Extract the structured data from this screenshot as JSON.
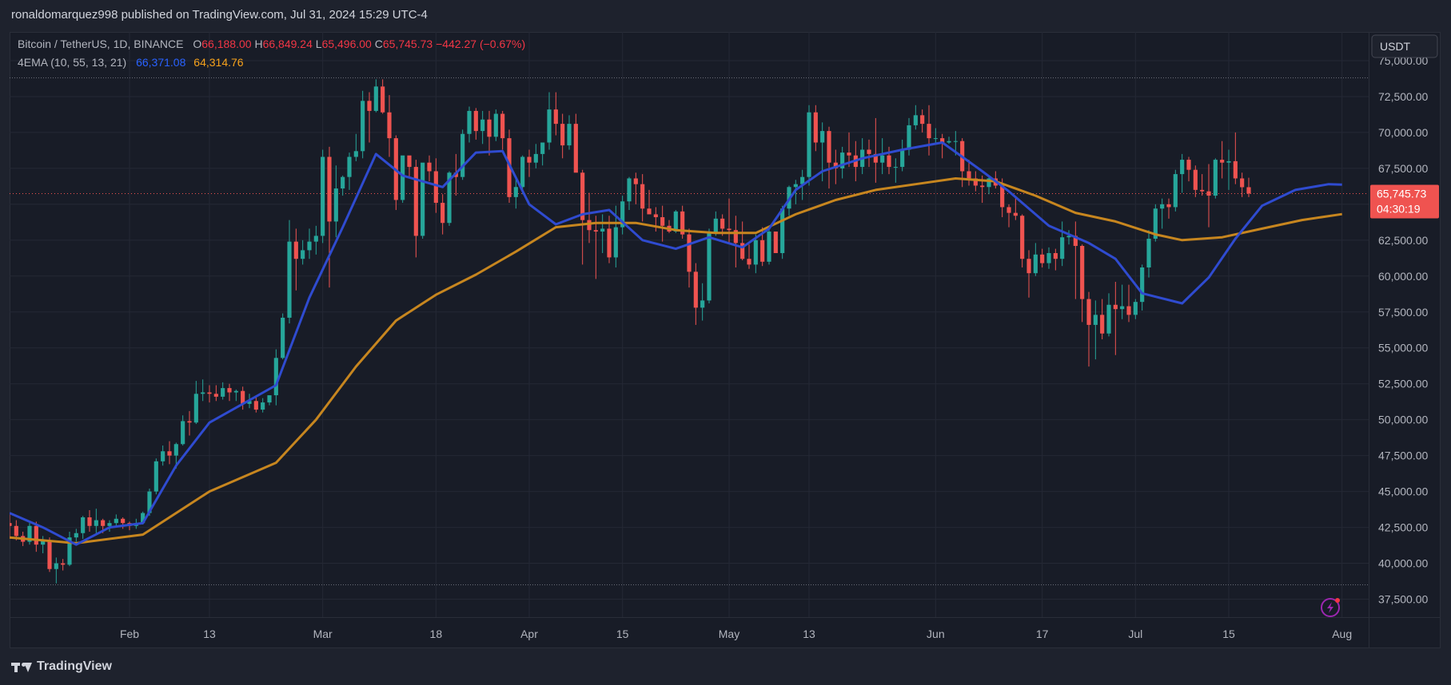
{
  "header": {
    "published": "ronaldomarquez998 published on TradingView.com, Jul 31, 2024 15:29 UTC-4"
  },
  "legend": {
    "symbol": "Bitcoin / TetherUS, 1D, BINANCE",
    "open_label": "O",
    "open": "66,188.00",
    "high_label": "H",
    "high": "66,849.24",
    "low_label": "L",
    "low": "65,496.00",
    "close_label": "C",
    "close": "65,745.73",
    "change": "−442.27 (−0.67%)",
    "indicator": "4EMA (10, 55, 13, 21)",
    "ema_fast": "66,371.08",
    "ema_slow": "64,314.76"
  },
  "price_axis": {
    "currency": "USDT",
    "last_price_label": "65,745.73",
    "countdown": "04:30:19"
  },
  "footer": {
    "brand": "TradingView"
  },
  "colors": {
    "up": "#26a69a",
    "down": "#ef5350",
    "ema_fast": "#2f4bd0",
    "ema_slow": "#c7861f",
    "background": "#181c27",
    "grid": "#242835"
  },
  "chart_data": {
    "type": "candlestick",
    "symbol": "BTCUSDT",
    "interval": "1D",
    "x_range": [
      "2024-01-14",
      "2024-08-05"
    ],
    "y_range": [
      36250,
      77000
    ],
    "y_ticks": [
      37500,
      40000,
      42500,
      45000,
      47500,
      50000,
      52500,
      55000,
      57500,
      60000,
      62500,
      65000,
      67500,
      70000,
      72500,
      75000
    ],
    "x_ticks": [
      {
        "label": "Feb",
        "date": "2024-02-01"
      },
      {
        "label": "13",
        "date": "2024-02-13"
      },
      {
        "label": "Mar",
        "date": "2024-03-01"
      },
      {
        "label": "18",
        "date": "2024-03-18"
      },
      {
        "label": "Apr",
        "date": "2024-04-01"
      },
      {
        "label": "15",
        "date": "2024-04-15"
      },
      {
        "label": "May",
        "date": "2024-05-01"
      },
      {
        "label": "13",
        "date": "2024-05-13"
      },
      {
        "label": "Jun",
        "date": "2024-06-01"
      },
      {
        "label": "17",
        "date": "2024-06-17"
      },
      {
        "label": "Jul",
        "date": "2024-07-01"
      },
      {
        "label": "15",
        "date": "2024-07-15"
      },
      {
        "label": "Aug",
        "date": "2024-08-01"
      }
    ],
    "grid": true,
    "reference_lines": [
      73800,
      38500
    ],
    "last_price": 65745.73,
    "start_date": "2024-01-14",
    "candles": [
      [
        42800,
        43400,
        41700,
        42600
      ],
      [
        42600,
        43000,
        41600,
        41900
      ],
      [
        41900,
        42200,
        41200,
        41500
      ],
      [
        41500,
        42800,
        41300,
        42600
      ],
      [
        42600,
        42900,
        40800,
        41300
      ],
      [
        41300,
        41900,
        40700,
        41600
      ],
      [
        41600,
        41800,
        39400,
        39600
      ],
      [
        39600,
        40400,
        38600,
        40000
      ],
      [
        40000,
        40300,
        39500,
        39900
      ],
      [
        39900,
        42200,
        39800,
        41800
      ],
      [
        41800,
        42400,
        41500,
        42100
      ],
      [
        42100,
        43300,
        41700,
        43200
      ],
      [
        43200,
        43700,
        42200,
        42600
      ],
      [
        42600,
        43800,
        42100,
        43000
      ],
      [
        43000,
        43100,
        42100,
        42600
      ],
      [
        42600,
        43000,
        42200,
        42800
      ],
      [
        42800,
        43400,
        42500,
        43100
      ],
      [
        43100,
        43200,
        42400,
        42800
      ],
      [
        42800,
        42900,
        42300,
        42600
      ],
      [
        42600,
        43100,
        42400,
        42800
      ],
      [
        42800,
        43600,
        42700,
        43500
      ],
      [
        43500,
        45200,
        43300,
        45000
      ],
      [
        45000,
        47300,
        44800,
        47100
      ],
      [
        47100,
        48200,
        46800,
        47800
      ],
      [
        47800,
        48500,
        46900,
        47500
      ],
      [
        47500,
        48400,
        46600,
        48300
      ],
      [
        48300,
        50300,
        48200,
        49900
      ],
      [
        49900,
        50600,
        48900,
        49800
      ],
      [
        49800,
        52700,
        49700,
        51800
      ],
      [
        51800,
        52800,
        51300,
        51900
      ],
      [
        51900,
        52400,
        51200,
        51800
      ],
      [
        51800,
        52400,
        51300,
        51600
      ],
      [
        51600,
        52600,
        51400,
        52200
      ],
      [
        52200,
        52500,
        51300,
        51900
      ],
      [
        51900,
        52100,
        51300,
        52000
      ],
      [
        52000,
        52300,
        50700,
        51100
      ],
      [
        51100,
        51800,
        50800,
        51300
      ],
      [
        51300,
        51600,
        50500,
        50700
      ],
      [
        50700,
        51500,
        50500,
        51200
      ],
      [
        51200,
        51700,
        51000,
        51700
      ],
      [
        51700,
        54900,
        51000,
        54300
      ],
      [
        54300,
        57400,
        54200,
        57100
      ],
      [
        57100,
        63900,
        56700,
        62400
      ],
      [
        62400,
        63300,
        59000,
        61200
      ],
      [
        61200,
        62500,
        60800,
        61800
      ],
      [
        61800,
        63300,
        61200,
        62400
      ],
      [
        62400,
        63500,
        61500,
        62800
      ],
      [
        62800,
        68800,
        62300,
        68300
      ],
      [
        68300,
        69000,
        59200,
        63800
      ],
      [
        63800,
        67700,
        62700,
        66100
      ],
      [
        66100,
        67000,
        65600,
        66900
      ],
      [
        66900,
        68600,
        66000,
        68300
      ],
      [
        68300,
        69900,
        68000,
        68700
      ],
      [
        68700,
        72900,
        68200,
        72200
      ],
      [
        72200,
        72800,
        69300,
        71500
      ],
      [
        71500,
        73700,
        71400,
        73200
      ],
      [
        73200,
        73700,
        71300,
        71400
      ],
      [
        71400,
        72600,
        68300,
        69600
      ],
      [
        69600,
        69800,
        64600,
        65300
      ],
      [
        65300,
        68300,
        65100,
        68400
      ],
      [
        68400,
        68300,
        66800,
        67600
      ],
      [
        67600,
        68100,
        61300,
        62800
      ],
      [
        62800,
        67600,
        62600,
        67900
      ],
      [
        67900,
        68400,
        66600,
        67300
      ],
      [
        67300,
        68200,
        64400,
        65100
      ],
      [
        65100,
        65700,
        62900,
        63700
      ],
      [
        63700,
        67300,
        63500,
        67200
      ],
      [
        67200,
        68500,
        65600,
        66900
      ],
      [
        66900,
        70200,
        66700,
        69900
      ],
      [
        69900,
        71800,
        69300,
        71500
      ],
      [
        71500,
        71700,
        69500,
        70100
      ],
      [
        70100,
        71500,
        69200,
        70900
      ],
      [
        70900,
        71500,
        68400,
        69700
      ],
      [
        69700,
        71600,
        69400,
        71300
      ],
      [
        71300,
        71500,
        68800,
        69600
      ],
      [
        69600,
        70200,
        65100,
        65500
      ],
      [
        65500,
        66900,
        64700,
        66200
      ],
      [
        66200,
        68400,
        65700,
        68300
      ],
      [
        68300,
        68800,
        66900,
        67900
      ],
      [
        67900,
        69200,
        67500,
        68500
      ],
      [
        68500,
        69300,
        67700,
        69300
      ],
      [
        69300,
        72800,
        68800,
        71600
      ],
      [
        71600,
        72800,
        69800,
        70600
      ],
      [
        70600,
        71300,
        68200,
        69100
      ],
      [
        69100,
        71200,
        68800,
        70600
      ],
      [
        70600,
        71300,
        67300,
        67200
      ],
      [
        67200,
        67400,
        60800,
        63900
      ],
      [
        63900,
        65800,
        62300,
        63200
      ],
      [
        63200,
        64200,
        59800,
        63100
      ],
      [
        63100,
        64300,
        61600,
        63300
      ],
      [
        63300,
        64200,
        60900,
        61300
      ],
      [
        61300,
        64900,
        60600,
        63400
      ],
      [
        63400,
        65600,
        62900,
        65200
      ],
      [
        65200,
        66900,
        64600,
        66800
      ],
      [
        66800,
        67200,
        65000,
        66400
      ],
      [
        66400,
        67100,
        63800,
        64700
      ],
      [
        64700,
        66000,
        64500,
        64300
      ],
      [
        64300,
        64800,
        63100,
        64100
      ],
      [
        64100,
        64900,
        62400,
        63500
      ],
      [
        63500,
        63900,
        63000,
        63100
      ],
      [
        63100,
        64600,
        63000,
        64500
      ],
      [
        64500,
        64900,
        62600,
        62900
      ],
      [
        62900,
        63300,
        59200,
        60300
      ],
      [
        60300,
        60900,
        56600,
        57800
      ],
      [
        57800,
        59500,
        56900,
        58300
      ],
      [
        58300,
        63300,
        58100,
        63000
      ],
      [
        63000,
        64500,
        62800,
        64000
      ],
      [
        64000,
        64300,
        62800,
        63300
      ],
      [
        63300,
        65400,
        62300,
        63200
      ],
      [
        63200,
        64200,
        60600,
        62300
      ],
      [
        62300,
        63800,
        61100,
        61200
      ],
      [
        61200,
        62200,
        60500,
        60800
      ],
      [
        60800,
        62900,
        60200,
        62500
      ],
      [
        62500,
        63400,
        60700,
        61000
      ],
      [
        61000,
        63300,
        60800,
        63100
      ],
      [
        63100,
        63100,
        61600,
        61600
      ],
      [
        61600,
        64900,
        61200,
        64700
      ],
      [
        64700,
        66300,
        64200,
        66200
      ],
      [
        66200,
        66700,
        65000,
        66400
      ],
      [
        66400,
        67400,
        65300,
        66900
      ],
      [
        66900,
        71900,
        66300,
        71400
      ],
      [
        71400,
        71900,
        68700,
        69300
      ],
      [
        69300,
        70700,
        66600,
        70100
      ],
      [
        70100,
        70400,
        66100,
        67900
      ],
      [
        67900,
        68800,
        66400,
        67500
      ],
      [
        67500,
        69000,
        66800,
        68600
      ],
      [
        68600,
        70000,
        67600,
        68400
      ],
      [
        68400,
        69400,
        66600,
        67600
      ],
      [
        67600,
        69600,
        67100,
        68800
      ],
      [
        68800,
        69500,
        67600,
        68500
      ],
      [
        68500,
        71000,
        66500,
        67900
      ],
      [
        67900,
        69600,
        67100,
        68400
      ],
      [
        68400,
        69000,
        67100,
        67600
      ],
      [
        67600,
        68200,
        66500,
        67600
      ],
      [
        67600,
        69500,
        67300,
        68800
      ],
      [
        68800,
        71000,
        68400,
        70500
      ],
      [
        70500,
        71900,
        70200,
        71200
      ],
      [
        71200,
        71600,
        70000,
        70600
      ],
      [
        70600,
        71900,
        68400,
        69600
      ],
      [
        69600,
        70300,
        69200,
        69600
      ],
      [
        69600,
        69900,
        68200,
        69300
      ],
      [
        69300,
        69700,
        69200,
        69400
      ],
      [
        69400,
        70100,
        68400,
        69400
      ],
      [
        69400,
        69600,
        66200,
        67300
      ],
      [
        67300,
        68100,
        66300,
        66800
      ],
      [
        66800,
        67300,
        65900,
        66300
      ],
      [
        66300,
        67000,
        65100,
        66200
      ],
      [
        66200,
        67000,
        65700,
        66800
      ],
      [
        66800,
        67300,
        66100,
        66300
      ],
      [
        66300,
        66800,
        64100,
        64800
      ],
      [
        64800,
        65000,
        63400,
        64400
      ],
      [
        64400,
        65500,
        63900,
        64200
      ],
      [
        64200,
        64300,
        60600,
        61200
      ],
      [
        61200,
        61800,
        58500,
        60200
      ],
      [
        60200,
        62300,
        60000,
        61500
      ],
      [
        61500,
        61900,
        60600,
        60900
      ],
      [
        60900,
        62000,
        60500,
        61600
      ],
      [
        61600,
        61900,
        60400,
        61200
      ],
      [
        61200,
        63800,
        60700,
        62700
      ],
      [
        62700,
        63200,
        62200,
        62800
      ],
      [
        62800,
        63800,
        58400,
        62100
      ],
      [
        62100,
        62200,
        56800,
        58400
      ],
      [
        58400,
        58900,
        53700,
        56600
      ],
      [
        56600,
        58300,
        54200,
        57300
      ],
      [
        57300,
        58400,
        55600,
        56000
      ],
      [
        56000,
        58800,
        55800,
        58000
      ],
      [
        58000,
        59600,
        54500,
        57700
      ],
      [
        57700,
        59400,
        57000,
        57900
      ],
      [
        57900,
        59400,
        56800,
        57300
      ],
      [
        57300,
        58400,
        57000,
        58200
      ],
      [
        58200,
        60800,
        57600,
        60600
      ],
      [
        60600,
        63200,
        59900,
        62600
      ],
      [
        62600,
        65000,
        62400,
        64700
      ],
      [
        64700,
        65400,
        63300,
        65000
      ],
      [
        65000,
        65400,
        64000,
        64800
      ],
      [
        64800,
        67400,
        64500,
        67100
      ],
      [
        67100,
        68500,
        65800,
        68100
      ],
      [
        68100,
        68300,
        66600,
        67400
      ],
      [
        67400,
        67700,
        65500,
        66000
      ],
      [
        66000,
        67100,
        65600,
        65900
      ],
      [
        65900,
        67800,
        63400,
        65600
      ],
      [
        65600,
        68200,
        65400,
        68100
      ],
      [
        68100,
        69400,
        66800,
        67900
      ],
      [
        67900,
        68800,
        66000,
        68000
      ],
      [
        68000,
        70000,
        66400,
        66800
      ],
      [
        66800,
        67200,
        65500,
        66188
      ],
      [
        66188,
        66849,
        65496,
        65745.73
      ]
    ],
    "ema_fast": [
      [
        0,
        43500
      ],
      [
        5,
        42500
      ],
      [
        10,
        41300
      ],
      [
        15,
        42500
      ],
      [
        20,
        42800
      ],
      [
        25,
        46800
      ],
      [
        30,
        49800
      ],
      [
        35,
        51100
      ],
      [
        40,
        52400
      ],
      [
        45,
        58500
      ],
      [
        50,
        63400
      ],
      [
        55,
        68500
      ],
      [
        59,
        67000
      ],
      [
        65,
        66200
      ],
      [
        70,
        68600
      ],
      [
        74,
        68700
      ],
      [
        78,
        65000
      ],
      [
        82,
        63600
      ],
      [
        86,
        64300
      ],
      [
        90,
        64600
      ],
      [
        95,
        62500
      ],
      [
        100,
        61900
      ],
      [
        105,
        62700
      ],
      [
        110,
        62000
      ],
      [
        114,
        63300
      ],
      [
        118,
        66000
      ],
      [
        122,
        67300
      ],
      [
        128,
        68200
      ],
      [
        134,
        68800
      ],
      [
        140,
        69300
      ],
      [
        146,
        67300
      ],
      [
        150,
        65900
      ],
      [
        156,
        63500
      ],
      [
        162,
        62300
      ],
      [
        166,
        61200
      ],
      [
        170,
        58800
      ],
      [
        176,
        58100
      ],
      [
        180,
        59900
      ],
      [
        184,
        62600
      ],
      [
        188,
        64900
      ],
      [
        193,
        66000
      ],
      [
        198,
        66400
      ],
      [
        200,
        66371
      ]
    ],
    "ema_slow": [
      [
        0,
        41800
      ],
      [
        10,
        41400
      ],
      [
        20,
        42000
      ],
      [
        30,
        45000
      ],
      [
        40,
        47000
      ],
      [
        46,
        50000
      ],
      [
        52,
        53700
      ],
      [
        58,
        56900
      ],
      [
        64,
        58700
      ],
      [
        70,
        60100
      ],
      [
        76,
        61700
      ],
      [
        82,
        63400
      ],
      [
        88,
        63700
      ],
      [
        94,
        63700
      ],
      [
        100,
        63200
      ],
      [
        106,
        63000
      ],
      [
        112,
        63000
      ],
      [
        118,
        64300
      ],
      [
        124,
        65300
      ],
      [
        130,
        66000
      ],
      [
        136,
        66400
      ],
      [
        142,
        66800
      ],
      [
        148,
        66600
      ],
      [
        154,
        65600
      ],
      [
        160,
        64400
      ],
      [
        166,
        63800
      ],
      [
        172,
        62900
      ],
      [
        176,
        62500
      ],
      [
        182,
        62700
      ],
      [
        188,
        63300
      ],
      [
        194,
        63900
      ],
      [
        200,
        64315
      ]
    ]
  }
}
